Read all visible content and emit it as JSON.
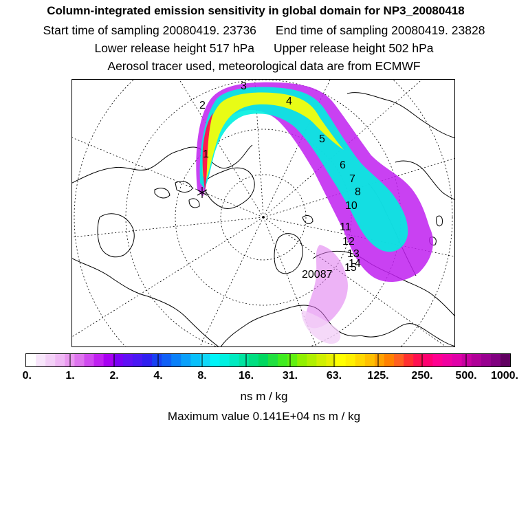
{
  "header": {
    "title": "Column-integrated emission sensitivity in global domain for NP3_20080418",
    "start_label": "Start time of sampling 20080419. 23736",
    "end_label": "End time of sampling 20080419. 23828",
    "lower_label": "Lower release height  517 hPa",
    "upper_label": "Upper release height  502 hPa",
    "tracer_line": "Aerosol tracer used, meteorological data are from ECMWF"
  },
  "map": {
    "day_labels": [
      "1",
      "2",
      "3",
      "4",
      "5",
      "6",
      "7",
      "8",
      "10",
      "11",
      "12",
      "13",
      "14",
      "15",
      "20087"
    ],
    "colors": {
      "land_outline": "#000000",
      "graticule": "#000000"
    }
  },
  "colorbar": {
    "tick_labels": [
      "0.",
      "1.",
      "2.",
      "4.",
      "8.",
      "16.",
      "31.",
      "63.",
      "125.",
      "250.",
      "500.",
      "1000."
    ],
    "colors": [
      "#ffffff",
      "#f8e6fb",
      "#f3d0f7",
      "#efb8f4",
      "#ea98f0",
      "#de74ee",
      "#d04aef",
      "#c020f0",
      "#a800f2",
      "#7a00f5",
      "#6010f5",
      "#4a18f4",
      "#3020f0",
      "#1840f2",
      "#1060f6",
      "#0a80f8",
      "#0aa0fa",
      "#08c0fb",
      "#10d8f8",
      "#00f4f8",
      "#00f0e0",
      "#00eac0",
      "#00e4a0",
      "#00de80",
      "#00d860",
      "#20e040",
      "#40ec20",
      "#60f010",
      "#90f000",
      "#b0f000",
      "#d0f000",
      "#e8f000",
      "#ffff00",
      "#fff000",
      "#ffd800",
      "#ffc000",
      "#ffa000",
      "#ff8000",
      "#ff6020",
      "#ff3030",
      "#ff1050",
      "#ff0070",
      "#ff0090",
      "#f000a0",
      "#e000a8",
      "#c800a0",
      "#b00098",
      "#980090",
      "#800080",
      "#600060"
    ],
    "units": "ns m / kg"
  },
  "maximum_label": "Maximum value  0.141E+04 ns m / kg"
}
